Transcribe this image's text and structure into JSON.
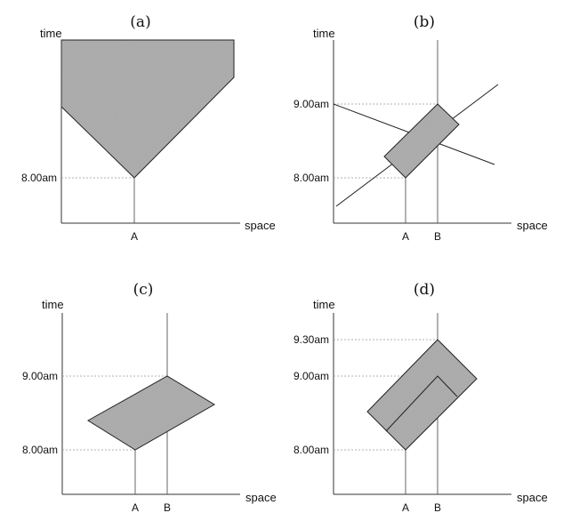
{
  "panels": {
    "a": {
      "title": "(a)",
      "y_axis_label": "time",
      "x_axis_label": "space",
      "ticks": {
        "t800": "8.00am"
      },
      "locations": {
        "A": "A"
      }
    },
    "b": {
      "title": "(b)",
      "y_axis_label": "time",
      "x_axis_label": "space",
      "ticks": {
        "t900": "9.00am",
        "t800": "8.00am"
      },
      "locations": {
        "A": "A",
        "B": "B"
      }
    },
    "c": {
      "title": "(c)",
      "y_axis_label": "time",
      "x_axis_label": "space",
      "ticks": {
        "t900": "9.00am",
        "t800": "8.00am"
      },
      "locations": {
        "A": "A",
        "B": "B"
      }
    },
    "d": {
      "title": "(d)",
      "y_axis_label": "time",
      "x_axis_label": "space",
      "ticks": {
        "t930": "9.30am",
        "t900": "9.00am",
        "t800": "8.00am"
      },
      "locations": {
        "A": "A",
        "B": "B"
      }
    }
  },
  "colors": {
    "shading": "#a8a8a8",
    "axis": "#333333",
    "guides": "#999999"
  }
}
